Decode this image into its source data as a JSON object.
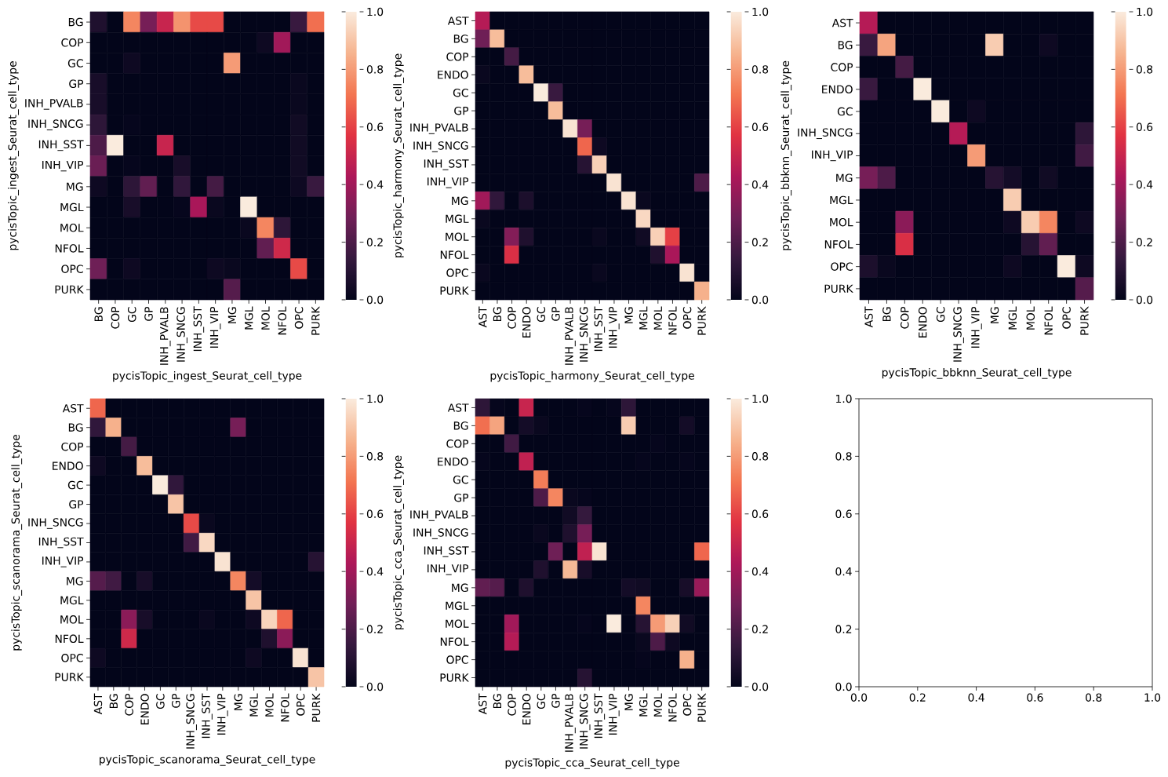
{
  "chart_data": [
    {
      "type": "heatmap",
      "xlabel": "pycisTopic_ingest_Seurat_cell_type",
      "ylabel": "pycisTopic_ingest_Seurat_cell_type",
      "categories": [
        "BG",
        "COP",
        "GC",
        "GP",
        "INH_PVALB",
        "INH_SNCG",
        "INH_SST",
        "INH_VIP",
        "MG",
        "MGL",
        "MOL",
        "NFOL",
        "OPC",
        "PURK"
      ],
      "y_categories": [
        "BG",
        "COP",
        "GC",
        "GP",
        "INH_PVALB",
        "INH_SNCG",
        "INH_SST",
        "INH_VIP",
        "MG",
        "MGL",
        "MOL",
        "NFOL",
        "OPC",
        "PURK"
      ],
      "cells": [
        [
          0.08,
          0,
          0.75,
          0.3,
          0.5,
          0.78,
          0.62,
          0.62,
          0,
          0,
          0,
          0,
          0.15,
          0.7
        ],
        [
          0,
          0,
          0,
          0,
          0,
          0,
          0,
          0,
          0,
          0,
          0.03,
          0.4,
          0,
          0
        ],
        [
          0,
          0,
          0.03,
          0,
          0,
          0,
          0,
          0,
          0.8,
          0,
          0,
          0,
          0,
          0
        ],
        [
          0.06,
          0,
          0,
          0,
          0,
          0,
          0,
          0,
          0,
          0,
          0,
          0,
          0.02,
          0
        ],
        [
          0.06,
          0,
          0,
          0,
          0,
          0,
          0,
          0,
          0,
          0,
          0,
          0,
          0.02,
          0
        ],
        [
          0.12,
          0,
          0.01,
          0,
          0,
          0,
          0,
          0,
          0,
          0,
          0,
          0,
          0.04,
          0
        ],
        [
          0.2,
          1.0,
          0,
          0,
          0.5,
          0,
          0,
          0,
          0,
          0,
          0,
          0,
          0.04,
          0
        ],
        [
          0.27,
          0,
          0.01,
          0,
          0,
          0.06,
          0,
          0,
          0,
          0,
          0,
          0,
          0.04,
          0
        ],
        [
          0.03,
          0,
          0.12,
          0.25,
          0,
          0.13,
          0,
          0.18,
          0,
          0,
          0,
          0,
          0.03,
          0.15
        ],
        [
          0,
          0,
          0.06,
          0,
          0,
          0.01,
          0.42,
          0.02,
          0,
          1.0,
          0,
          0,
          0,
          0
        ],
        [
          0,
          0,
          0,
          0,
          0,
          0,
          0,
          0,
          0,
          0.02,
          0.75,
          0.12,
          0,
          0
        ],
        [
          0,
          0,
          0,
          0,
          0,
          0,
          0,
          0,
          0,
          0,
          0.25,
          0.52,
          0,
          0
        ],
        [
          0.28,
          0,
          0.03,
          0,
          0,
          0,
          0,
          0.03,
          0.02,
          0,
          0,
          0,
          0.62,
          0
        ],
        [
          0,
          0,
          0,
          0,
          0,
          0,
          0,
          0,
          0.22,
          0,
          0,
          0,
          0,
          0
        ]
      ],
      "clim": [
        0,
        1
      ],
      "cticks": [
        {
          "value": 0,
          "label": "0.0"
        },
        {
          "value": 0.2,
          "label": "0.2"
        },
        {
          "value": 0.4,
          "label": "0.4"
        },
        {
          "value": 0.6,
          "label": "0.6"
        },
        {
          "value": 0.8,
          "label": "0.8"
        },
        {
          "value": 1,
          "label": "1.0"
        }
      ]
    },
    {
      "type": "heatmap",
      "xlabel": "pycisTopic_harmony_Seurat_cell_type",
      "ylabel": "pycisTopic_harmony_Seurat_cell_type",
      "categories": [
        "AST",
        "BG",
        "COP",
        "ENDO",
        "GC",
        "GP",
        "INH_PVALB",
        "INH_SNCG",
        "INH_SST",
        "INH_VIP",
        "MG",
        "MGL",
        "MOL",
        "NFOL",
        "OPC",
        "PURK"
      ],
      "y_categories": [
        "AST",
        "BG",
        "COP",
        "ENDO",
        "GC",
        "GP",
        "INH_PVALB",
        "INH_SNCG",
        "INH_SST",
        "INH_VIP",
        "MG",
        "MGL",
        "MOL",
        "NFOL",
        "OPC",
        "PURK"
      ],
      "cells": [
        [
          0.45,
          0,
          0,
          0,
          0,
          0,
          0,
          0,
          0,
          0,
          0,
          0,
          0,
          0,
          0,
          0
        ],
        [
          0.28,
          0.88,
          0,
          0,
          0,
          0,
          0,
          0,
          0,
          0,
          0,
          0,
          0,
          0,
          0,
          0
        ],
        [
          0,
          0,
          0.18,
          0,
          0,
          0,
          0,
          0,
          0,
          0,
          0,
          0,
          0,
          0,
          0,
          0
        ],
        [
          0.02,
          0,
          0,
          0.88,
          0,
          0,
          0,
          0,
          0,
          0,
          0,
          0,
          0,
          0,
          0,
          0
        ],
        [
          0,
          0,
          0,
          0,
          1.0,
          0.15,
          0,
          0,
          0,
          0,
          0,
          0,
          0,
          0,
          0,
          0
        ],
        [
          0,
          0,
          0,
          0,
          0,
          0.88,
          0,
          0,
          0,
          0,
          0,
          0,
          0,
          0,
          0,
          0
        ],
        [
          0,
          0,
          0,
          0,
          0,
          0,
          0.98,
          0.3,
          0,
          0,
          0,
          0,
          0,
          0,
          0,
          0
        ],
        [
          0,
          0,
          0,
          0,
          0,
          0,
          0,
          0.68,
          0.03,
          0,
          0,
          0,
          0,
          0,
          0,
          0
        ],
        [
          0,
          0,
          0,
          0,
          0,
          0,
          0,
          0.1,
          0.93,
          0,
          0,
          0,
          0,
          0,
          0,
          0
        ],
        [
          0,
          0,
          0,
          0,
          0,
          0,
          0,
          0,
          0,
          0.98,
          0,
          0,
          0,
          0,
          0,
          0.2
        ],
        [
          0.4,
          0.13,
          0,
          0.07,
          0,
          0,
          0,
          0,
          0,
          0,
          0.98,
          0.02,
          0,
          0,
          0,
          0
        ],
        [
          0.02,
          0,
          0,
          0,
          0,
          0,
          0,
          0,
          0,
          0,
          0,
          0.95,
          0,
          0,
          0,
          0
        ],
        [
          0,
          0,
          0.33,
          0.08,
          0,
          0,
          0,
          0,
          0.02,
          0,
          0,
          0.04,
          0.93,
          0.6,
          0,
          0
        ],
        [
          0,
          0,
          0.55,
          0,
          0,
          0,
          0,
          0,
          0,
          0,
          0,
          0,
          0.08,
          0.42,
          0,
          0
        ],
        [
          0.02,
          0,
          0,
          0,
          0,
          0,
          0,
          0,
          0.02,
          0,
          0,
          0,
          0,
          0,
          0.98,
          0
        ],
        [
          0,
          0,
          0,
          0,
          0,
          0,
          0,
          0,
          0,
          0,
          0,
          0,
          0,
          0,
          0,
          0.85
        ]
      ],
      "clim": [
        0,
        1
      ],
      "cticks": [
        {
          "value": 0,
          "label": "0.0"
        },
        {
          "value": 0.2,
          "label": "0.2"
        },
        {
          "value": 0.4,
          "label": "0.4"
        },
        {
          "value": 0.6,
          "label": "0.6"
        },
        {
          "value": 0.8,
          "label": "0.8"
        },
        {
          "value": 1,
          "label": "1.0"
        }
      ]
    },
    {
      "type": "heatmap",
      "xlabel": "pycisTopic_bbknn_Seurat_cell_type",
      "ylabel": "pycisTopic_bbknn_Seurat_cell_type",
      "categories": [
        "AST",
        "BG",
        "COP",
        "ENDO",
        "GC",
        "INH_SNCG",
        "INH_VIP",
        "MG",
        "MGL",
        "MOL",
        "NFOL",
        "OPC",
        "PURK"
      ],
      "y_categories": [
        "AST",
        "BG",
        "COP",
        "ENDO",
        "GC",
        "INH_SNCG",
        "INH_VIP",
        "MG",
        "MGL",
        "MOL",
        "NFOL",
        "OPC",
        "PURK"
      ],
      "cells": [
        [
          0.45,
          0,
          0,
          0,
          0,
          0,
          0,
          0,
          0,
          0,
          0,
          0,
          0
        ],
        [
          0.15,
          0.82,
          0,
          0,
          0,
          0,
          0,
          0.92,
          0,
          0,
          0.03,
          0,
          0
        ],
        [
          0,
          0,
          0.18,
          0,
          0,
          0,
          0,
          0,
          0,
          0,
          0,
          0,
          0
        ],
        [
          0.15,
          0,
          0,
          1.0,
          0,
          0,
          0,
          0,
          0,
          0,
          0,
          0,
          0
        ],
        [
          0,
          0,
          0,
          0,
          1.0,
          0,
          0.03,
          0,
          0,
          0,
          0,
          0,
          0
        ],
        [
          0,
          0,
          0,
          0,
          0,
          0.45,
          0,
          0,
          0,
          0,
          0,
          0,
          0.12
        ],
        [
          0,
          0,
          0,
          0,
          0,
          0,
          0.8,
          0,
          0,
          0,
          0,
          0,
          0.17
        ],
        [
          0.3,
          0.2,
          0,
          0,
          0,
          0,
          0,
          0.1,
          0.05,
          0,
          0.04,
          0,
          0
        ],
        [
          0,
          0,
          0,
          0,
          0,
          0,
          0,
          0,
          0.92,
          0,
          0,
          0,
          0
        ],
        [
          0,
          0,
          0.35,
          0,
          0,
          0,
          0,
          0,
          0.03,
          0.92,
          0.75,
          0,
          0.03
        ],
        [
          0,
          0,
          0.55,
          0,
          0,
          0,
          0,
          0,
          0,
          0.1,
          0.25,
          0,
          0
        ],
        [
          0.07,
          0.02,
          0,
          0,
          0,
          0,
          0,
          0,
          0.03,
          0,
          0,
          1.0,
          0.03
        ],
        [
          0,
          0,
          0,
          0,
          0,
          0,
          0,
          0,
          0,
          0,
          0,
          0,
          0.22
        ]
      ],
      "clim": [
        0,
        1
      ],
      "cticks": [
        {
          "value": 0,
          "label": "0.0"
        },
        {
          "value": 0.2,
          "label": "0.2"
        },
        {
          "value": 0.4,
          "label": "0.4"
        },
        {
          "value": 0.6,
          "label": "0.6"
        },
        {
          "value": 0.8,
          "label": "0.8"
        },
        {
          "value": 1,
          "label": "1.0"
        }
      ]
    },
    {
      "type": "heatmap",
      "xlabel": "pycisTopic_scanorama_Seurat_cell_type",
      "ylabel": "pycisTopic_scanorama_Seurat_cell_type",
      "categories": [
        "AST",
        "BG",
        "COP",
        "ENDO",
        "GC",
        "GP",
        "INH_SNCG",
        "INH_SST",
        "INH_VIP",
        "MG",
        "MGL",
        "MOL",
        "NFOL",
        "OPC",
        "PURK"
      ],
      "y_categories": [
        "AST",
        "BG",
        "COP",
        "ENDO",
        "GC",
        "GP",
        "INH_SNCG",
        "INH_SST",
        "INH_VIP",
        "MG",
        "MGL",
        "MOL",
        "NFOL",
        "OPC",
        "PURK"
      ],
      "cells": [
        [
          0.68,
          0,
          0,
          0,
          0,
          0,
          0,
          0,
          0,
          0,
          0,
          0,
          0,
          0,
          0
        ],
        [
          0.13,
          0.85,
          0,
          0,
          0,
          0,
          0,
          0,
          0,
          0.3,
          0,
          0,
          0,
          0,
          0
        ],
        [
          0,
          0,
          0.18,
          0,
          0,
          0,
          0,
          0,
          0,
          0,
          0,
          0,
          0,
          0,
          0
        ],
        [
          0.03,
          0,
          0,
          0.88,
          0,
          0,
          0,
          0,
          0,
          0,
          0,
          0,
          0,
          0,
          0
        ],
        [
          0,
          0,
          0,
          0,
          1.0,
          0.13,
          0,
          0,
          0,
          0,
          0,
          0,
          0,
          0,
          0
        ],
        [
          0,
          0,
          0,
          0,
          0,
          0.9,
          0,
          0,
          0,
          0,
          0,
          0,
          0,
          0,
          0
        ],
        [
          0,
          0,
          0,
          0,
          0,
          0,
          0.62,
          0.02,
          0,
          0,
          0,
          0,
          0,
          0,
          0
        ],
        [
          0,
          0,
          0,
          0,
          0,
          0,
          0.17,
          0.95,
          0,
          0,
          0,
          0,
          0,
          0,
          0
        ],
        [
          0,
          0,
          0,
          0,
          0,
          0,
          0,
          0,
          0.98,
          0,
          0,
          0,
          0,
          0,
          0.1
        ],
        [
          0.22,
          0.17,
          0,
          0.06,
          0,
          0,
          0,
          0,
          0,
          0.75,
          0.05,
          0,
          0,
          0,
          0
        ],
        [
          0,
          0,
          0,
          0,
          0,
          0,
          0,
          0,
          0,
          0,
          0.9,
          0,
          0,
          0,
          0
        ],
        [
          0,
          0,
          0.35,
          0.06,
          0,
          0,
          0,
          0.02,
          0,
          0,
          0.03,
          0.94,
          0.68,
          0,
          0
        ],
        [
          0,
          0,
          0.52,
          0,
          0,
          0,
          0,
          0,
          0,
          0,
          0,
          0.08,
          0.35,
          0,
          0
        ],
        [
          0.03,
          0,
          0,
          0,
          0,
          0,
          0,
          0,
          0,
          0,
          0.03,
          0,
          0,
          0.98,
          0
        ],
        [
          0,
          0,
          0,
          0,
          0,
          0,
          0,
          0,
          0,
          0,
          0,
          0,
          0,
          0,
          0.9
        ]
      ],
      "clim": [
        0,
        1
      ],
      "cticks": [
        {
          "value": 0,
          "label": "0.0"
        },
        {
          "value": 0.2,
          "label": "0.2"
        },
        {
          "value": 0.4,
          "label": "0.4"
        },
        {
          "value": 0.6,
          "label": "0.6"
        },
        {
          "value": 0.8,
          "label": "0.8"
        },
        {
          "value": 1,
          "label": "1.0"
        }
      ]
    },
    {
      "type": "heatmap",
      "xlabel": "pycisTopic_cca_Seurat_cell_type",
      "ylabel": "pycisTopic_cca_Seurat_cell_type",
      "categories": [
        "AST",
        "BG",
        "COP",
        "ENDO",
        "GC",
        "GP",
        "INH_PVALB",
        "INH_SNCG",
        "INH_SST",
        "INH_VIP",
        "MG",
        "MGL",
        "MOL",
        "NFOL",
        "OPC",
        "PURK"
      ],
      "y_categories": [
        "AST",
        "BG",
        "COP",
        "ENDO",
        "GC",
        "GP",
        "INH_PVALB",
        "INH_SNCG",
        "INH_SST",
        "INH_VIP",
        "MG",
        "MGL",
        "MOL",
        "NFOL",
        "OPC",
        "PURK"
      ],
      "cells": [
        [
          0.12,
          0.01,
          0,
          0.5,
          0,
          0,
          0,
          0.01,
          0,
          0.01,
          0.12,
          0,
          0,
          0,
          0,
          0
        ],
        [
          0.7,
          0.82,
          0,
          0.05,
          0.02,
          0,
          0,
          0,
          0,
          0,
          0.92,
          0,
          0,
          0,
          0.05,
          0
        ],
        [
          0,
          0,
          0.17,
          0,
          0,
          0,
          0,
          0,
          0,
          0,
          0,
          0,
          0.01,
          0,
          0,
          0
        ],
        [
          0.01,
          0,
          0,
          0.48,
          0,
          0,
          0,
          0,
          0,
          0,
          0,
          0.01,
          0,
          0,
          0.01,
          0
        ],
        [
          0,
          0,
          0,
          0,
          0.73,
          0,
          0,
          0,
          0,
          0,
          0,
          0,
          0,
          0,
          0,
          0
        ],
        [
          0,
          0,
          0,
          0,
          0.2,
          0.75,
          0.02,
          0.01,
          0,
          0,
          0,
          0,
          0,
          0,
          0,
          0
        ],
        [
          0,
          0,
          0,
          0,
          0,
          0,
          0.04,
          0.14,
          0,
          0,
          0,
          0,
          0,
          0,
          0,
          0
        ],
        [
          0,
          0,
          0,
          0,
          0.02,
          0,
          0.08,
          0.3,
          0,
          0,
          0,
          0,
          0,
          0,
          0,
          0
        ],
        [
          0,
          0,
          0,
          0,
          0,
          0.28,
          0,
          0.48,
          0.98,
          0,
          0,
          0,
          0,
          0,
          0,
          0.68
        ],
        [
          0,
          0,
          0,
          0,
          0.08,
          0,
          0.87,
          0.06,
          0,
          0,
          0,
          0,
          0,
          0,
          0,
          0
        ],
        [
          0.25,
          0.22,
          0,
          0.08,
          0,
          0,
          0,
          0,
          0,
          0,
          0.05,
          0.04,
          0,
          0,
          0.06,
          0.38
        ],
        [
          0,
          0,
          0,
          0,
          0,
          0,
          0,
          0,
          0,
          0,
          0,
          0.75,
          0,
          0,
          0,
          0
        ],
        [
          0,
          0,
          0.4,
          0,
          0,
          0,
          0,
          0.01,
          0,
          1.0,
          0,
          0.1,
          0.8,
          0.93,
          0.04,
          0
        ],
        [
          0,
          0,
          0.45,
          0,
          0,
          0,
          0,
          0,
          0,
          0,
          0,
          0.02,
          0.2,
          0.03,
          0,
          0
        ],
        [
          0,
          0,
          0,
          0,
          0,
          0,
          0,
          0,
          0,
          0,
          0,
          0.01,
          0,
          0,
          0.85,
          0
        ],
        [
          0,
          0,
          0,
          0,
          0,
          0,
          0,
          0.1,
          0,
          0,
          0,
          0,
          0,
          0,
          0,
          0
        ]
      ],
      "clim": [
        0,
        1
      ],
      "cticks": [
        {
          "value": 0,
          "label": "0.0"
        },
        {
          "value": 0.2,
          "label": "0.2"
        },
        {
          "value": 0.4,
          "label": "0.4"
        },
        {
          "value": 0.6,
          "label": "0.6"
        },
        {
          "value": 0.8,
          "label": "0.8"
        },
        {
          "value": 1,
          "label": "1.0"
        }
      ]
    },
    {
      "type": "scatter",
      "xlim": [
        0,
        1
      ],
      "ylim": [
        0,
        1
      ],
      "xticks": [
        {
          "value": 0,
          "label": "0.0"
        },
        {
          "value": 0.2,
          "label": "0.2"
        },
        {
          "value": 0.4,
          "label": "0.4"
        },
        {
          "value": 0.6,
          "label": "0.6"
        },
        {
          "value": 0.8,
          "label": "0.8"
        },
        {
          "value": 1,
          "label": "1.0"
        }
      ],
      "yticks": [
        {
          "value": 0,
          "label": "0.0"
        },
        {
          "value": 0.2,
          "label": "0.2"
        },
        {
          "value": 0.4,
          "label": "0.4"
        },
        {
          "value": 0.6,
          "label": "0.6"
        },
        {
          "value": 0.8,
          "label": "0.8"
        },
        {
          "value": 1,
          "label": "1.0"
        }
      ]
    }
  ]
}
